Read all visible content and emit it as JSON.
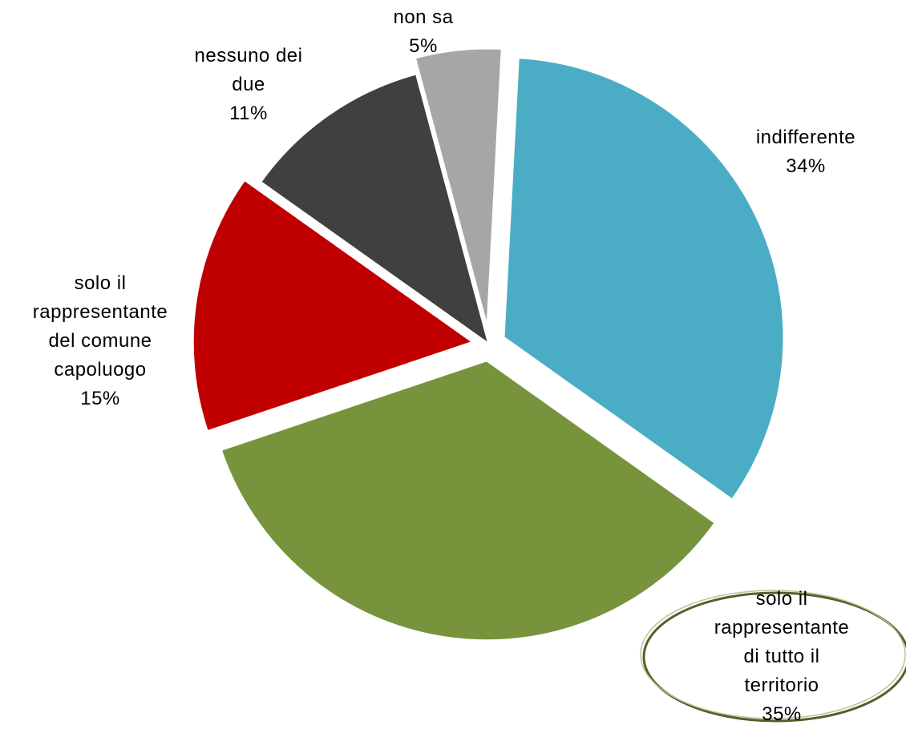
{
  "chart_data": {
    "type": "pie",
    "title": "",
    "slices": [
      {
        "label": [
          "indifferente"
        ],
        "pct_text": "34%",
        "value": 34,
        "color": "#4bacc6",
        "explode": 1
      },
      {
        "label": [
          "solo il",
          "rappresentante",
          "di tutto il",
          "territorio"
        ],
        "pct_text": "35%",
        "value": 35,
        "color": "#77933c",
        "explode": 1
      },
      {
        "label": [
          "solo il",
          "rappresentante",
          "del comune",
          "capoluogo"
        ],
        "pct_text": "15%",
        "value": 15,
        "color": "#c00000",
        "explode": 1
      },
      {
        "label": [
          "nessuno dei",
          "due"
        ],
        "pct_text": "11%",
        "value": 11,
        "color": "#404040",
        "explode": 0
      },
      {
        "label": [
          "non sa"
        ],
        "pct_text": "5%",
        "value": 5,
        "color": "#a6a6a6",
        "explode": 1
      }
    ],
    "highlighted_label_index": 1
  }
}
